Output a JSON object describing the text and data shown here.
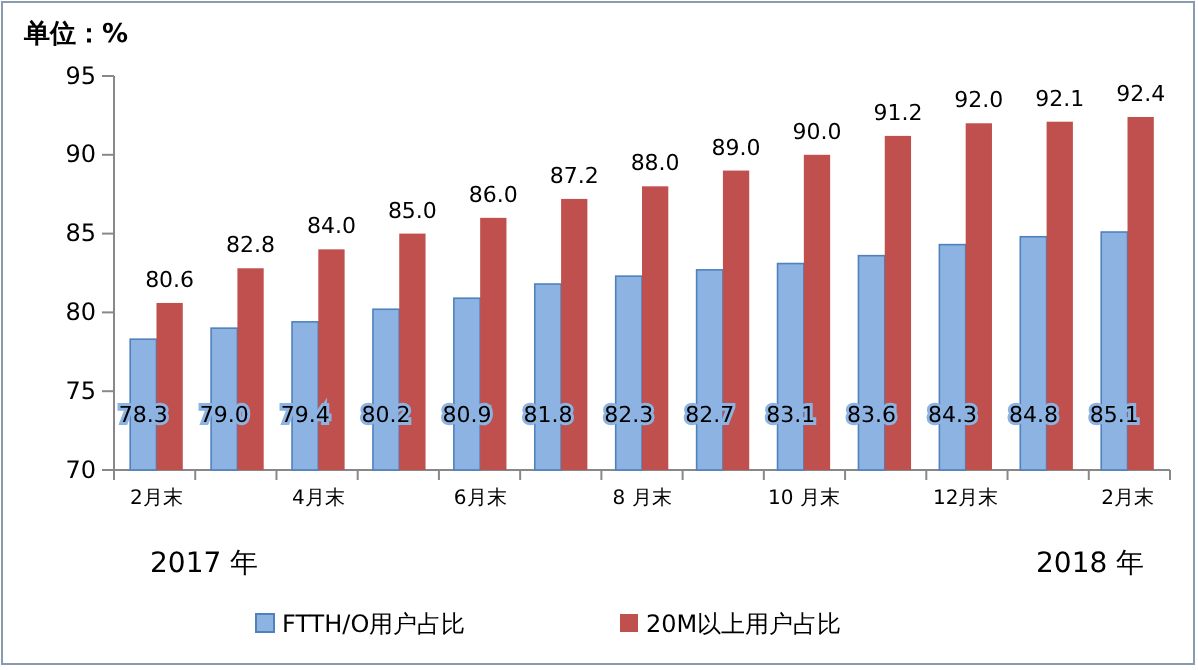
{
  "chart_data": {
    "type": "bar",
    "ylabel": "单位：%",
    "categories": [
      "2月末",
      null,
      "4月末",
      null,
      "6月末",
      null,
      "8 月末",
      null,
      "10 月末",
      null,
      "12月末",
      null,
      "2月末"
    ],
    "series": [
      {
        "name": "FTTH/O用户占比",
        "color": "#8db3e2",
        "values": [
          78.3,
          79.0,
          79.4,
          80.2,
          80.9,
          81.8,
          82.3,
          82.7,
          83.1,
          83.6,
          84.3,
          84.8,
          85.1
        ],
        "value_labels": [
          "78.3",
          "79.0",
          "79.4",
          "80.2",
          "80.9",
          "81.8",
          "82.3",
          "82.7",
          "83.1",
          "83.6",
          "84.3",
          "84.8",
          "85.1"
        ]
      },
      {
        "name": "20M以上用户占比",
        "color": "#c0504d",
        "values": [
          80.6,
          82.8,
          84.0,
          85.0,
          86.0,
          87.2,
          88.0,
          89.0,
          90.0,
          91.2,
          92.0,
          92.1,
          92.4
        ],
        "value_labels": [
          "80.6",
          "82.8",
          "84.0",
          "85.0",
          "86.0",
          "87.2",
          "88.0",
          "89.0",
          "90.0",
          "91.2",
          "92.0",
          "92.1",
          "92.4"
        ]
      }
    ],
    "ylim": [
      70,
      95
    ],
    "yticks": [
      70,
      75,
      80,
      85,
      90,
      95
    ],
    "legend": "bottom",
    "annotations": [
      "2017 年",
      "2018 年"
    ]
  }
}
